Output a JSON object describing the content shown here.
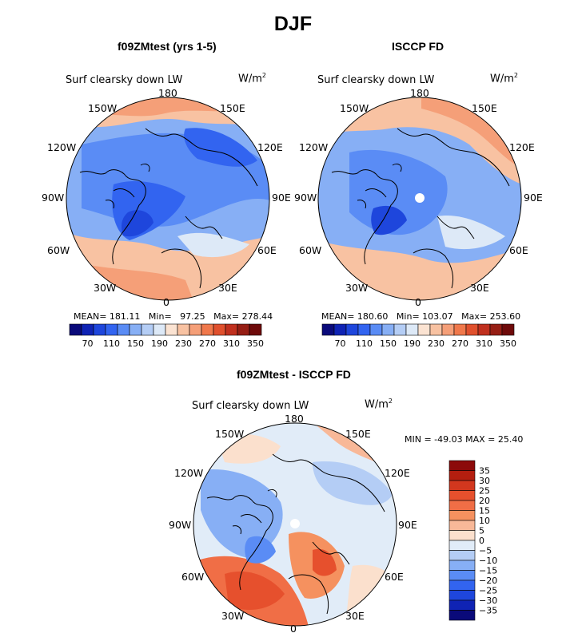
{
  "title": "DJF",
  "panels": [
    {
      "title": "f09ZMtest (yrs 1-5)",
      "variable": "Surf clearsky down LW",
      "units": "W/m",
      "units_exp": "2",
      "lon_labels": {
        "n": "180",
        "nw": "150W",
        "ne": "150E",
        "wnw": "120W",
        "ene": "120E",
        "w": "90W",
        "e": "90E",
        "wsw": "60W",
        "ese": "60E",
        "sw": "30W",
        "se": "30E",
        "s": "0"
      },
      "stats": {
        "mean_label": "MEAN=",
        "mean": "181.11",
        "min_label": "Min=",
        "min": "97.25",
        "max_label": "Max=",
        "max": "278.44"
      },
      "colorbar_ticks": [
        "70",
        "110",
        "150",
        "190",
        "230",
        "270",
        "310",
        "350"
      ]
    },
    {
      "title": "ISCCP FD",
      "variable": "Surf clearsky down LW",
      "units": "W/m",
      "units_exp": "2",
      "lon_labels": {
        "n": "180",
        "nw": "150W",
        "ne": "150E",
        "wnw": "120W",
        "ene": "120E",
        "w": "90W",
        "e": "90E",
        "wsw": "60W",
        "ese": "60E",
        "sw": "30W",
        "se": "30E",
        "s": "0"
      },
      "stats": {
        "mean_label": "MEAN=",
        "mean": "180.60",
        "min_label": "Min=",
        "min": "103.07",
        "max_label": "Max=",
        "max": "253.60"
      },
      "colorbar_ticks": [
        "70",
        "110",
        "150",
        "190",
        "230",
        "270",
        "310",
        "350"
      ]
    },
    {
      "title": "f09ZMtest - ISCCP FD",
      "variable": "Surf clearsky down LW",
      "units": "W/m",
      "units_exp": "2",
      "lon_labels": {
        "n": "180",
        "nw": "150W",
        "ne": "150E",
        "wnw": "120W",
        "ene": "120E",
        "w": "90W",
        "e": "90E",
        "wsw": "60W",
        "ese": "60E",
        "sw": "30W",
        "se": "30E",
        "s": "0"
      },
      "minmax": "MIN = -49.03 MAX =  25.40",
      "colorbar_ticks": [
        "35",
        "30",
        "25",
        "20",
        "15",
        "10",
        "5",
        "0",
        "−5",
        "−10",
        "−15",
        "−20",
        "−25",
        "−30",
        "−35"
      ]
    }
  ],
  "colors": {
    "abs_scale": [
      "#0a0a7a",
      "#0f23b4",
      "#1e46dc",
      "#3264f0",
      "#5a8cf5",
      "#87aff5",
      "#b4cdf5",
      "#dde9f7",
      "#fbe3d2",
      "#f8c2a2",
      "#f59f78",
      "#f0784b",
      "#e0502d",
      "#c0301e",
      "#961e14",
      "#6e0a0a"
    ],
    "diff_scale": [
      "#8c0a0a",
      "#b41e0f",
      "#d2371e",
      "#e6502d",
      "#f06e46",
      "#f5915f",
      "#f8b898",
      "#fbe0cd",
      "#e1ecf8",
      "#b4cdf5",
      "#87aff5",
      "#5a8cf5",
      "#3264f0",
      "#1e46dc",
      "#0f23b4",
      "#0a0a7a"
    ],
    "land_outline": "#000000",
    "pole_marker": "#ffffff"
  }
}
